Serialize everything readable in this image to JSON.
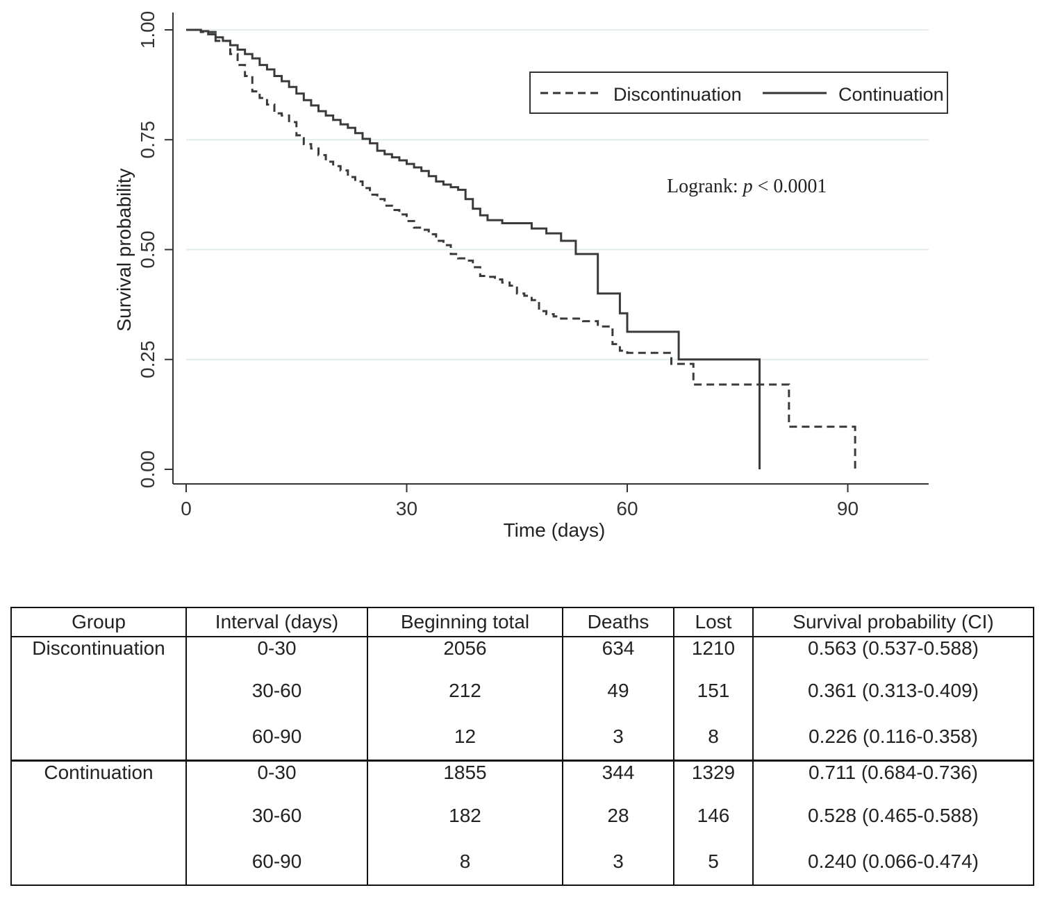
{
  "chart_data": {
    "type": "line",
    "subtype": "kaplan-meier step",
    "title": "",
    "xlabel": "Time (days)",
    "ylabel": "Survival probability",
    "xlim": [
      0,
      101
    ],
    "ylim": [
      0,
      1
    ],
    "xticks": [
      {
        "value": 0,
        "label": "0"
      },
      {
        "value": 30,
        "label": "30"
      },
      {
        "value": 60,
        "label": "60"
      },
      {
        "value": 90,
        "label": "90"
      }
    ],
    "yticks": [
      {
        "value": 0,
        "label": "0.00"
      },
      {
        "value": 0.25,
        "label": "0.25"
      },
      {
        "value": 0.5,
        "label": "0.50"
      },
      {
        "value": 0.75,
        "label": "0.75"
      },
      {
        "value": 1,
        "label": "1.00"
      }
    ],
    "grid": true,
    "legend_position": "top-right",
    "annotation": {
      "prefix": "Logrank: ",
      "italic": "p",
      "suffix": " < 0.0001"
    },
    "series": [
      {
        "name": "Discontinuation",
        "style": "dashed",
        "points": [
          [
            0,
            1.0
          ],
          [
            2,
            0.995
          ],
          [
            4,
            0.975
          ],
          [
            6,
            0.945
          ],
          [
            7,
            0.92
          ],
          [
            8,
            0.895
          ],
          [
            9,
            0.86
          ],
          [
            10,
            0.845
          ],
          [
            11,
            0.83
          ],
          [
            12,
            0.81
          ],
          [
            13,
            0.805
          ],
          [
            14,
            0.79
          ],
          [
            15,
            0.76
          ],
          [
            16,
            0.74
          ],
          [
            17,
            0.73
          ],
          [
            18,
            0.715
          ],
          [
            19,
            0.7
          ],
          [
            20,
            0.69
          ],
          [
            21,
            0.68
          ],
          [
            22,
            0.665
          ],
          [
            23,
            0.655
          ],
          [
            24,
            0.64
          ],
          [
            25,
            0.625
          ],
          [
            26,
            0.615
          ],
          [
            27,
            0.6
          ],
          [
            28,
            0.59
          ],
          [
            29,
            0.58
          ],
          [
            30,
            0.565
          ],
          [
            31,
            0.55
          ],
          [
            32,
            0.545
          ],
          [
            33,
            0.535
          ],
          [
            34,
            0.52
          ],
          [
            35,
            0.51
          ],
          [
            36,
            0.49
          ],
          [
            37,
            0.48
          ],
          [
            38,
            0.475
          ],
          [
            39,
            0.46
          ],
          [
            40,
            0.44
          ],
          [
            41,
            0.438
          ],
          [
            42,
            0.432
          ],
          [
            43,
            0.425
          ],
          [
            44,
            0.418
          ],
          [
            45,
            0.4
          ],
          [
            46,
            0.395
          ],
          [
            47,
            0.385
          ],
          [
            48,
            0.36
          ],
          [
            49,
            0.353
          ],
          [
            50,
            0.348
          ],
          [
            51,
            0.343
          ],
          [
            54,
            0.337
          ],
          [
            56,
            0.325
          ],
          [
            58,
            0.285
          ],
          [
            59,
            0.27
          ],
          [
            60,
            0.265
          ],
          [
            66,
            0.24
          ],
          [
            69,
            0.193
          ],
          [
            82,
            0.097
          ],
          [
            91,
            0.0
          ]
        ]
      },
      {
        "name": "Continuation",
        "style": "solid",
        "points": [
          [
            0,
            1.0
          ],
          [
            2,
            0.997
          ],
          [
            3,
            0.99
          ],
          [
            4,
            0.983
          ],
          [
            5,
            0.975
          ],
          [
            6,
            0.965
          ],
          [
            7,
            0.955
          ],
          [
            8,
            0.945
          ],
          [
            9,
            0.935
          ],
          [
            10,
            0.92
          ],
          [
            11,
            0.91
          ],
          [
            12,
            0.895
          ],
          [
            13,
            0.883
          ],
          [
            14,
            0.87
          ],
          [
            15,
            0.855
          ],
          [
            16,
            0.84
          ],
          [
            17,
            0.828
          ],
          [
            18,
            0.815
          ],
          [
            19,
            0.805
          ],
          [
            20,
            0.795
          ],
          [
            21,
            0.785
          ],
          [
            22,
            0.777
          ],
          [
            23,
            0.765
          ],
          [
            24,
            0.752
          ],
          [
            25,
            0.742
          ],
          [
            26,
            0.725
          ],
          [
            27,
            0.717
          ],
          [
            28,
            0.71
          ],
          [
            29,
            0.703
          ],
          [
            30,
            0.695
          ],
          [
            31,
            0.687
          ],
          [
            32,
            0.679
          ],
          [
            33,
            0.667
          ],
          [
            34,
            0.655
          ],
          [
            35,
            0.648
          ],
          [
            36,
            0.642
          ],
          [
            37,
            0.636
          ],
          [
            38,
            0.615
          ],
          [
            39,
            0.593
          ],
          [
            40,
            0.578
          ],
          [
            41,
            0.567
          ],
          [
            43,
            0.56
          ],
          [
            47,
            0.548
          ],
          [
            49,
            0.537
          ],
          [
            51,
            0.52
          ],
          [
            53,
            0.49
          ],
          [
            56,
            0.4
          ],
          [
            59,
            0.355
          ],
          [
            60,
            0.313
          ],
          [
            67,
            0.25
          ],
          [
            78,
            0.0
          ]
        ]
      }
    ]
  },
  "table": {
    "headers": [
      "Group",
      "Interval (days)",
      "Beginning total",
      "Deaths",
      "Lost",
      "Survival probability (CI)"
    ],
    "groups": [
      {
        "name": "Discontinuation",
        "rows": [
          {
            "interval": "0-30",
            "total": "2056",
            "deaths": "634",
            "lost": "1210",
            "surv": "0.563 (0.537-0.588)"
          },
          {
            "interval": "30-60",
            "total": "212",
            "deaths": "49",
            "lost": "151",
            "surv": "0.361 (0.313-0.409)"
          },
          {
            "interval": "60-90",
            "total": "12",
            "deaths": "3",
            "lost": "8",
            "surv": "0.226 (0.116-0.358)"
          }
        ]
      },
      {
        "name": "Continuation",
        "rows": [
          {
            "interval": "0-30",
            "total": "1855",
            "deaths": "344",
            "lost": "1329",
            "surv": "0.711 (0.684-0.736)"
          },
          {
            "interval": "30-60",
            "total": "182",
            "deaths": "28",
            "lost": "146",
            "surv": "0.528 (0.465-0.588)"
          },
          {
            "interval": "60-90",
            "total": "8",
            "deaths": "3",
            "lost": "5",
            "surv": "0.240 (0.066-0.474)"
          }
        ]
      }
    ]
  }
}
